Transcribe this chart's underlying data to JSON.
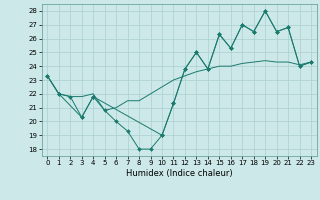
{
  "title": "",
  "xlabel": "Humidex (Indice chaleur)",
  "bg_color": "#cce8e8",
  "line_color": "#1a7a6e",
  "grid_color": "#aacfcf",
  "ylim": [
    17.5,
    28.5
  ],
  "xlim": [
    -0.5,
    23.5
  ],
  "yticks": [
    18,
    19,
    20,
    21,
    22,
    23,
    24,
    25,
    26,
    27,
    28
  ],
  "xticks": [
    0,
    1,
    2,
    3,
    4,
    5,
    6,
    7,
    8,
    9,
    10,
    11,
    12,
    13,
    14,
    15,
    16,
    17,
    18,
    19,
    20,
    21,
    22,
    23
  ],
  "series1_x": [
    0,
    1,
    2,
    3,
    4,
    5,
    6,
    7,
    8,
    9,
    10,
    11,
    12,
    13,
    14,
    15,
    16,
    17,
    18,
    19,
    20,
    21,
    22,
    23
  ],
  "series1_y": [
    23.3,
    22.0,
    21.8,
    20.3,
    21.8,
    20.8,
    20.0,
    19.3,
    18.0,
    18.0,
    19.0,
    21.3,
    23.8,
    25.0,
    23.8,
    26.3,
    25.3,
    27.0,
    26.5,
    28.0,
    26.5,
    26.8,
    24.0,
    24.3
  ],
  "series2_x": [
    0,
    1,
    2,
    3,
    4,
    5,
    6,
    7,
    8,
    9,
    10,
    11,
    12,
    13,
    14,
    15,
    16,
    17,
    18,
    19,
    20,
    21,
    22,
    23
  ],
  "series2_y": [
    23.3,
    22.0,
    21.8,
    21.8,
    22.0,
    20.8,
    21.0,
    21.5,
    21.5,
    22.0,
    22.5,
    23.0,
    23.3,
    23.6,
    23.8,
    24.0,
    24.0,
    24.2,
    24.3,
    24.4,
    24.3,
    24.3,
    24.1,
    24.3
  ],
  "series3_x": [
    0,
    1,
    3,
    4,
    10,
    11,
    12,
    13,
    14,
    15,
    16,
    17,
    18,
    19,
    20,
    21,
    22,
    23
  ],
  "series3_y": [
    23.3,
    22.0,
    20.3,
    21.8,
    19.0,
    21.3,
    23.8,
    25.0,
    23.8,
    26.3,
    25.3,
    27.0,
    26.5,
    28.0,
    26.5,
    26.8,
    24.0,
    24.3
  ],
  "xlabel_fontsize": 6,
  "tick_fontsize": 5
}
